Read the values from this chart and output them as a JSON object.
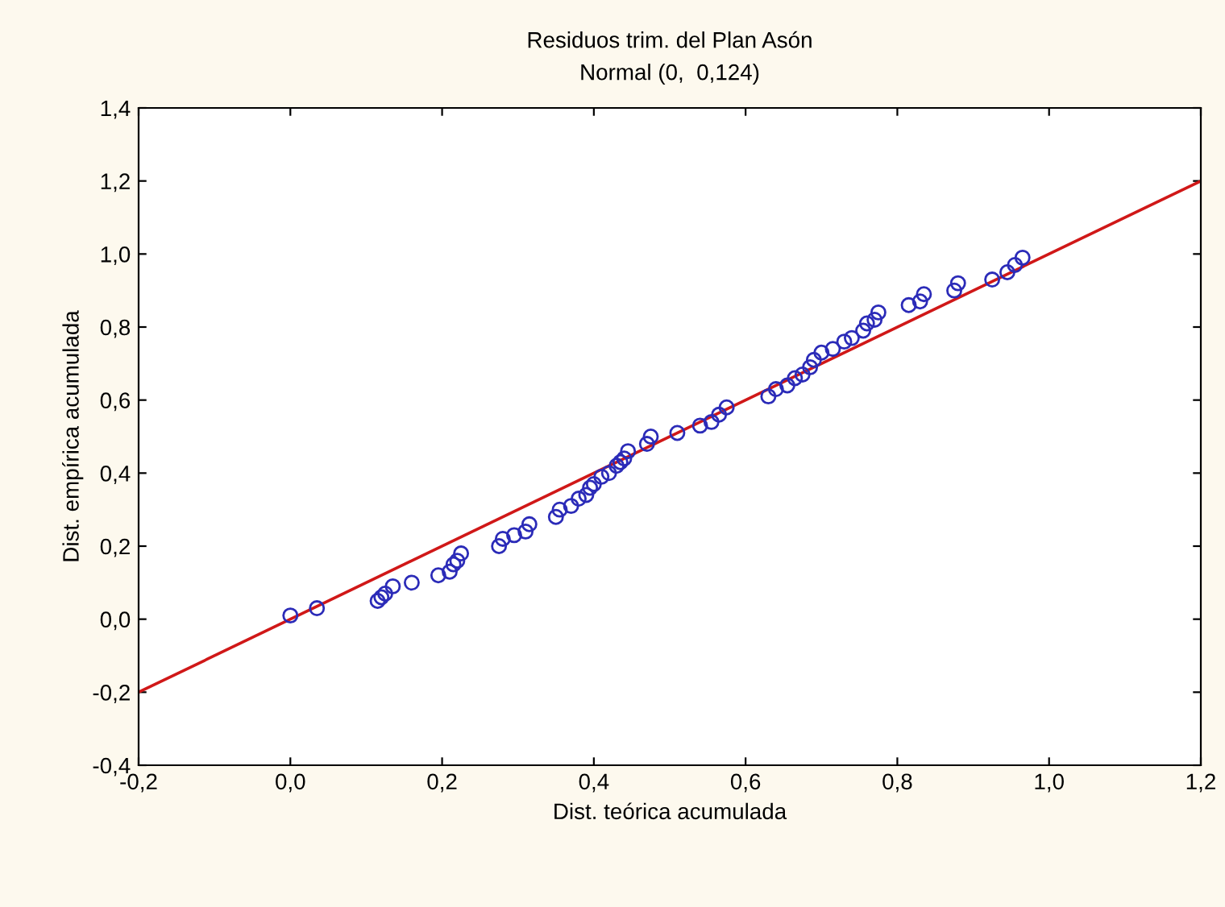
{
  "chart_data": {
    "type": "scatter",
    "title": "Residuos trim. del Plan Asón",
    "subtitle": "Normal (0,  0,124)",
    "xlabel": "Dist. teórica acumulada",
    "ylabel": "Dist. empírica acumulada",
    "series": [
      {
        "color": "#2b2bb8",
        "marker": "circle",
        "x": [
          0.0,
          0.035,
          0.115,
          0.12,
          0.125,
          0.135,
          0.16,
          0.195,
          0.21,
          0.215,
          0.22,
          0.225,
          0.275,
          0.28,
          0.295,
          0.31,
          0.315,
          0.35,
          0.355,
          0.37,
          0.38,
          0.39,
          0.395,
          0.4,
          0.41,
          0.42,
          0.43,
          0.435,
          0.44,
          0.445,
          0.47,
          0.475,
          0.51,
          0.54,
          0.555,
          0.565,
          0.575,
          0.63,
          0.64,
          0.655,
          0.665,
          0.675,
          0.685,
          0.69,
          0.7,
          0.715,
          0.73,
          0.74,
          0.755,
          0.76,
          0.77,
          0.775,
          0.815,
          0.83,
          0.835,
          0.875,
          0.88,
          0.925,
          0.945,
          0.955,
          0.965
        ],
        "values": [
          0.01,
          0.03,
          0.05,
          0.06,
          0.07,
          0.09,
          0.1,
          0.12,
          0.13,
          0.15,
          0.16,
          0.18,
          0.2,
          0.22,
          0.23,
          0.24,
          0.26,
          0.28,
          0.3,
          0.31,
          0.33,
          0.34,
          0.36,
          0.37,
          0.39,
          0.4,
          0.42,
          0.43,
          0.44,
          0.46,
          0.48,
          0.5,
          0.51,
          0.53,
          0.54,
          0.56,
          0.58,
          0.61,
          0.63,
          0.64,
          0.66,
          0.67,
          0.69,
          0.71,
          0.73,
          0.74,
          0.76,
          0.77,
          0.79,
          0.81,
          0.82,
          0.84,
          0.86,
          0.87,
          0.89,
          0.9,
          0.92,
          0.93,
          0.95,
          0.97,
          0.99
        ]
      },
      {
        "type": "line",
        "color": "#d01818",
        "line_style": "solid",
        "x": [
          -0.2,
          1.2
        ],
        "values": [
          -0.2,
          1.2
        ]
      }
    ],
    "xlim": [
      -0.2,
      1.2
    ],
    "ylim": [
      -0.4,
      1.4
    ],
    "xticks": [
      {
        "value": -0.2,
        "label": "-0,2"
      },
      {
        "value": 0.0,
        "label": "0,0"
      },
      {
        "value": 0.2,
        "label": "0,2"
      },
      {
        "value": 0.4,
        "label": "0,4"
      },
      {
        "value": 0.6,
        "label": "0,6"
      },
      {
        "value": 0.8,
        "label": "0,8"
      },
      {
        "value": 1.0,
        "label": "1,0"
      },
      {
        "value": 1.2,
        "label": "1,2"
      }
    ],
    "yticks": [
      {
        "value": -0.4,
        "label": "-0,4"
      },
      {
        "value": -0.2,
        "label": "-0,2"
      },
      {
        "value": 0.0,
        "label": "0,0"
      },
      {
        "value": 0.2,
        "label": "0,2"
      },
      {
        "value": 0.4,
        "label": "0,4"
      },
      {
        "value": 0.6,
        "label": "0,6"
      },
      {
        "value": 0.8,
        "label": "0,8"
      },
      {
        "value": 1.0,
        "label": "1,0"
      },
      {
        "value": 1.2,
        "label": "1,2"
      },
      {
        "value": 1.4,
        "label": "1,4"
      }
    ],
    "grid": false,
    "legend": false
  }
}
